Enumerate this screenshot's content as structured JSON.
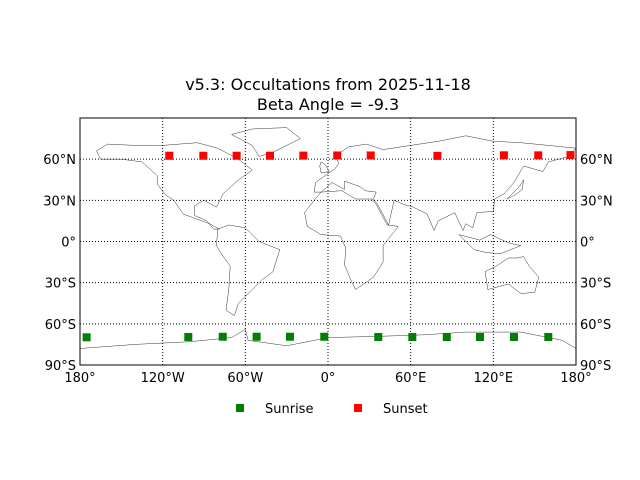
{
  "chart_data": {
    "type": "scatter",
    "title": "v5.3: Occultations from 2025-11-18",
    "subtitle": "Beta Angle = -9.3",
    "xlim": [
      -180,
      180
    ],
    "ylim": [
      -90,
      90
    ],
    "projection": "equirectangular world map",
    "grid": true,
    "x_ticks": [
      -180,
      -120,
      -60,
      0,
      60,
      120,
      180
    ],
    "x_tick_labels": [
      "180°",
      "120°W",
      "60°W",
      "0°",
      "60°E",
      "120°E",
      "180°"
    ],
    "y_ticks": [
      60,
      30,
      0,
      -30,
      -60,
      -90
    ],
    "y_tick_labels": [
      "60°N",
      "30°N",
      "0°",
      "30°S",
      "60°S",
      "90°S"
    ],
    "legend_position": "bottom",
    "series": [
      {
        "name": "Sunrise",
        "color": "#008000",
        "marker": "square",
        "lon": [
          -175.2,
          -101.4,
          -76.4,
          -51.8,
          -27.6,
          -2.7,
          36.5,
          61.2,
          86.2,
          110.3,
          135.0,
          159.9
        ],
        "lat": [
          -69.8,
          -69.6,
          -69.4,
          -69.4,
          -69.4,
          -69.4,
          -69.6,
          -69.6,
          -69.6,
          -69.6,
          -69.6,
          -69.6
        ]
      },
      {
        "name": "Sunset",
        "color": "#ff0000",
        "marker": "square",
        "lon": [
          -115.2,
          -90.5,
          -66.3,
          -42.1,
          -17.9,
          6.7,
          31.0,
          79.4,
          127.7,
          152.6,
          176.0
        ],
        "lat": [
          62.5,
          62.5,
          62.5,
          62.5,
          62.6,
          62.7,
          62.7,
          62.4,
          62.8,
          62.8,
          63.0
        ]
      }
    ]
  }
}
